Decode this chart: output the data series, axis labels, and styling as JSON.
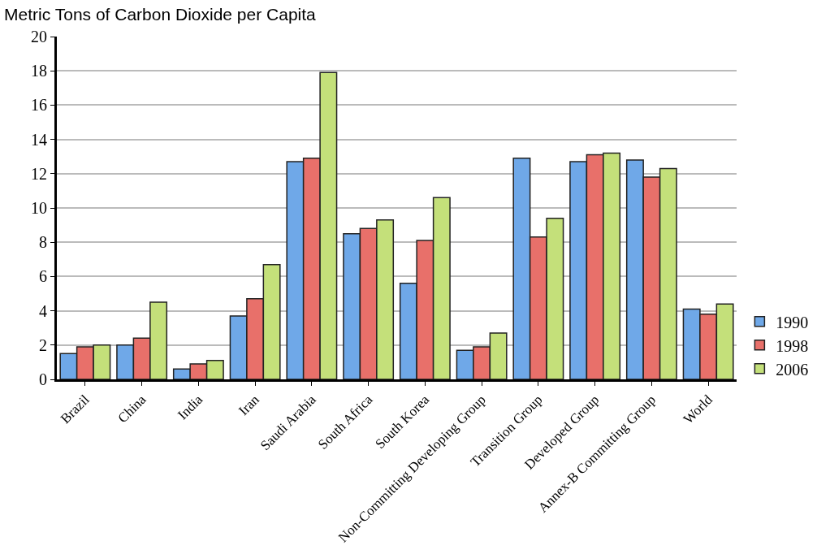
{
  "chart_data": {
    "type": "bar",
    "title": "Metric Tons of Carbon Dioxide per Capita",
    "categories": [
      "Brazil",
      "China",
      "India",
      "Iran",
      "Saudi Arabia",
      "South Africa",
      "South Korea",
      "Non-Committing Developing Group",
      "Transition Group",
      "Developed Group",
      "Annex-B Committing Group",
      "World"
    ],
    "series": [
      {
        "name": "1990",
        "color": "#6fa8e8",
        "values": [
          1.5,
          2.0,
          0.6,
          3.7,
          12.7,
          8.5,
          5.6,
          1.7,
          12.9,
          12.7,
          12.8,
          4.1
        ]
      },
      {
        "name": "1998",
        "color": "#e8706a",
        "values": [
          1.9,
          2.4,
          0.9,
          4.7,
          12.9,
          8.8,
          8.1,
          1.9,
          8.3,
          13.1,
          11.8,
          3.8
        ]
      },
      {
        "name": "2006",
        "color": "#c4e07a",
        "values": [
          2.0,
          4.5,
          1.1,
          6.7,
          17.9,
          9.3,
          10.6,
          2.7,
          9.4,
          13.2,
          12.3,
          4.4
        ]
      }
    ],
    "ylim": [
      0,
      20
    ],
    "yticks": [
      0,
      2,
      4,
      6,
      8,
      10,
      12,
      14,
      16,
      18,
      20
    ],
    "grid": "y",
    "legend": "right"
  }
}
